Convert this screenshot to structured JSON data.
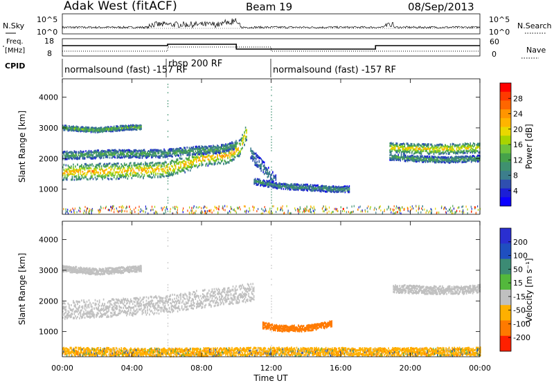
{
  "header": {
    "station": "Adak West (fitACF)",
    "beam": "Beam 19",
    "date": "08/Sep/2013"
  },
  "top_panels": {
    "nsky_label": "N.Sky",
    "nsearch_label": "N.Search",
    "nsky_ticks": [
      "10^5",
      "10^0"
    ],
    "nsearch_ticks": [
      "10^5",
      "10^0"
    ],
    "freq_label_line1": "Freq.",
    "freq_label_line2": "[MHz]",
    "freq_ticks": [
      "18",
      "8"
    ],
    "nave_label": "Nave",
    "nave_ticks": [
      "60",
      "0"
    ],
    "cpid_label": "CPID",
    "modes": [
      "normalsound (fast) -157 RF",
      "rbsp 200 RF",
      "normalsound (fast) -157 RF"
    ]
  },
  "power_colorbar": {
    "title": "Power [dB]",
    "ticks": [
      "28",
      "24",
      "20",
      "16",
      "12",
      "8",
      "4"
    ],
    "colors": [
      "#ff0000",
      "#ff3a00",
      "#ff6600",
      "#ff9500",
      "#ffb400",
      "#e9d800",
      "#a8d400",
      "#6ec23c",
      "#46a24a",
      "#3f9170",
      "#3c7e8c",
      "#2f4fb0",
      "#1b1ed6",
      "#0b00ff"
    ]
  },
  "velocity_colorbar": {
    "title": "Velocity [m s⁻¹]",
    "ticks": [
      "200",
      "100",
      "50",
      "15",
      "-15",
      "-50",
      "-100",
      "-200"
    ],
    "colors": [
      "#2a2fd0",
      "#1f4fc0",
      "#3c8b74",
      "#53b83c",
      "#c0c0c0",
      "#ffb000",
      "#ff7a00",
      "#ff2000"
    ]
  },
  "chart_data": [
    {
      "type": "heatmap",
      "name": "power",
      "xlabel": "",
      "ylabel": "Slant Range [km]",
      "xlim": [
        0,
        24
      ],
      "ylim": [
        180,
        4600
      ],
      "yticks": [
        "1000",
        "2000",
        "3000",
        "4000"
      ],
      "bands": [
        {
          "x": [
            0,
            4,
            6,
            7.3,
            8.0,
            9.5,
            10.2,
            10.6
          ],
          "y": [
            1550,
            1600,
            1650,
            1850,
            2000,
            2100,
            2350,
            2900
          ],
          "width": 400,
          "level": 22
        },
        {
          "x": [
            0,
            3,
            5.5,
            7.5,
            9,
            10
          ],
          "y": [
            2100,
            2150,
            2150,
            2250,
            2300,
            2450
          ],
          "width": 200,
          "level": 12
        },
        {
          "x": [
            0,
            2,
            3.5,
            4.5
          ],
          "y": [
            3000,
            2920,
            3000,
            3020
          ],
          "width": 120,
          "level": 14
        },
        {
          "x": [
            10.8,
            11.2,
            11.8,
            12.3
          ],
          "y": [
            2200,
            1900,
            1500,
            1200
          ],
          "width": 350,
          "level": 8
        },
        {
          "x": [
            11,
            12.5,
            14,
            15.5,
            16.5
          ],
          "y": [
            1250,
            1100,
            1050,
            1000,
            1000
          ],
          "width": 150,
          "level": 10
        },
        {
          "x": [
            18.8,
            20,
            21.5,
            23,
            24
          ],
          "y": [
            2350,
            2320,
            2300,
            2330,
            2350
          ],
          "width": 250,
          "level": 20
        },
        {
          "x": [
            18.8,
            20,
            22,
            24
          ],
          "y": [
            2050,
            2000,
            1950,
            2000
          ],
          "width": 150,
          "level": 12
        }
      ],
      "colorbar": {
        "label": "Power [dB]",
        "min": 0,
        "max": 30
      }
    },
    {
      "type": "heatmap",
      "name": "velocity",
      "xlabel": "Time UT",
      "ylabel": "Slant Range [km]",
      "xlim": [
        0,
        24
      ],
      "ylim": [
        180,
        4600
      ],
      "xticks": [
        "00:00",
        "04:00",
        "08:00",
        "12:00",
        "16:00",
        "20:00",
        "00:00"
      ],
      "yticks": [
        "1000",
        "2000",
        "3000",
        "4000"
      ],
      "bands": [
        {
          "x": [
            0,
            4,
            6,
            8.5,
            10,
            11
          ],
          "y": [
            1700,
            1800,
            1900,
            2100,
            2200,
            2300
          ],
          "width": 450,
          "velocity": 0
        },
        {
          "x": [
            0,
            2,
            4.5
          ],
          "y": [
            3050,
            2950,
            3050
          ],
          "width": 150,
          "velocity": 0
        },
        {
          "x": [
            11.5,
            12.5,
            14,
            15.5
          ],
          "y": [
            1200,
            1100,
            1100,
            1250
          ],
          "width": 150,
          "velocity": -70
        },
        {
          "x": [
            19,
            21,
            23,
            24
          ],
          "y": [
            2400,
            2350,
            2350,
            2400
          ],
          "width": 200,
          "velocity": 0
        },
        {
          "x": [
            0,
            6,
            12,
            18,
            24
          ],
          "y": [
            350,
            320,
            350,
            330,
            350
          ],
          "width": 200,
          "velocity": -40
        }
      ],
      "colorbar": {
        "label": "Velocity [m s⁻¹]",
        "min": -200,
        "max": 200
      }
    }
  ]
}
